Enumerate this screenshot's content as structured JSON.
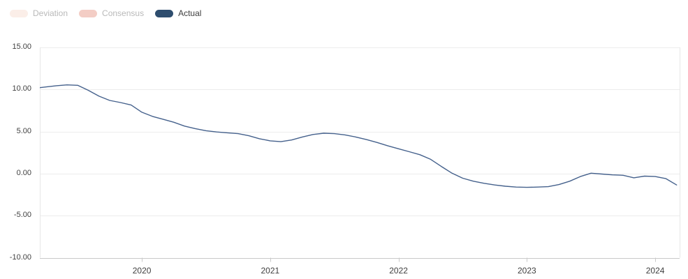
{
  "legend": {
    "items": [
      {
        "label": "Deviation",
        "pill_color": "#fbeee8",
        "text_color": "#b9b9b9",
        "active": false
      },
      {
        "label": "Consensus",
        "pill_color": "#f3cdc5",
        "text_color": "#b9b9b9",
        "active": false
      },
      {
        "label": "Actual",
        "pill_color": "#2e4d6e",
        "text_color": "#3c3c3c",
        "active": true
      }
    ]
  },
  "chart_data": {
    "type": "line",
    "title": "",
    "xlabel": "",
    "ylabel": "",
    "x_tick_labels": [
      "2020",
      "2021",
      "2022",
      "2023",
      "2024"
    ],
    "y_tick_labels": [
      "15.00",
      "10.00",
      "5.00",
      "0.00",
      "-5.00",
      "-10.00"
    ],
    "y_tick_values": [
      15,
      10,
      5,
      0,
      -5,
      -10
    ],
    "ylim": [
      -10,
      15
    ],
    "xlim_decimal_years": [
      2019.205,
      2024.19
    ],
    "grid": "horizontal",
    "legend_position": "top-left",
    "series": [
      {
        "name": "Deviation",
        "visible": false,
        "points": []
      },
      {
        "name": "Consensus",
        "visible": false,
        "points": []
      },
      {
        "name": "Actual",
        "visible": true,
        "color": "#45618c",
        "points": [
          [
            "2019-03",
            10.15
          ],
          [
            "2019-04",
            10.3
          ],
          [
            "2019-05",
            10.45
          ],
          [
            "2019-06",
            10.55
          ],
          [
            "2019-07",
            10.5
          ],
          [
            "2019-08",
            9.9
          ],
          [
            "2019-09",
            9.2
          ],
          [
            "2019-10",
            8.7
          ],
          [
            "2019-11",
            8.45
          ],
          [
            "2019-12",
            8.15
          ],
          [
            "2020-01",
            7.3
          ],
          [
            "2020-02",
            6.8
          ],
          [
            "2020-03",
            6.45
          ],
          [
            "2020-04",
            6.1
          ],
          [
            "2020-05",
            5.65
          ],
          [
            "2020-06",
            5.35
          ],
          [
            "2020-07",
            5.1
          ],
          [
            "2020-08",
            4.95
          ],
          [
            "2020-09",
            4.85
          ],
          [
            "2020-10",
            4.75
          ],
          [
            "2020-11",
            4.5
          ],
          [
            "2020-12",
            4.15
          ],
          [
            "2021-01",
            3.9
          ],
          [
            "2021-02",
            3.8
          ],
          [
            "2021-03",
            4.0
          ],
          [
            "2021-04",
            4.35
          ],
          [
            "2021-05",
            4.65
          ],
          [
            "2021-06",
            4.8
          ],
          [
            "2021-07",
            4.75
          ],
          [
            "2021-08",
            4.6
          ],
          [
            "2021-09",
            4.35
          ],
          [
            "2021-10",
            4.05
          ],
          [
            "2021-11",
            3.7
          ],
          [
            "2021-12",
            3.3
          ],
          [
            "2022-01",
            2.95
          ],
          [
            "2022-02",
            2.6
          ],
          [
            "2022-03",
            2.25
          ],
          [
            "2022-04",
            1.7
          ],
          [
            "2022-05",
            0.85
          ],
          [
            "2022-06",
            0.05
          ],
          [
            "2022-07",
            -0.55
          ],
          [
            "2022-08",
            -0.9
          ],
          [
            "2022-09",
            -1.15
          ],
          [
            "2022-10",
            -1.35
          ],
          [
            "2022-11",
            -1.5
          ],
          [
            "2022-12",
            -1.6
          ],
          [
            "2023-01",
            -1.63
          ],
          [
            "2023-02",
            -1.6
          ],
          [
            "2023-03",
            -1.55
          ],
          [
            "2023-04",
            -1.3
          ],
          [
            "2023-05",
            -0.9
          ],
          [
            "2023-06",
            -0.35
          ],
          [
            "2023-07",
            0.05
          ],
          [
            "2023-08",
            -0.05
          ],
          [
            "2023-09",
            -0.15
          ],
          [
            "2023-10",
            -0.2
          ],
          [
            "2023-11",
            -0.5
          ],
          [
            "2023-12",
            -0.3
          ],
          [
            "2024-01",
            -0.35
          ],
          [
            "2024-02",
            -0.6
          ],
          [
            "2024-03",
            -1.35
          ]
        ]
      }
    ]
  },
  "colors": {
    "background": "#ffffff",
    "gridline": "#ececec",
    "axis_line": "#c9c9c9",
    "plot_side_border": "#e7e7e7",
    "actual_line": "#45618c"
  }
}
